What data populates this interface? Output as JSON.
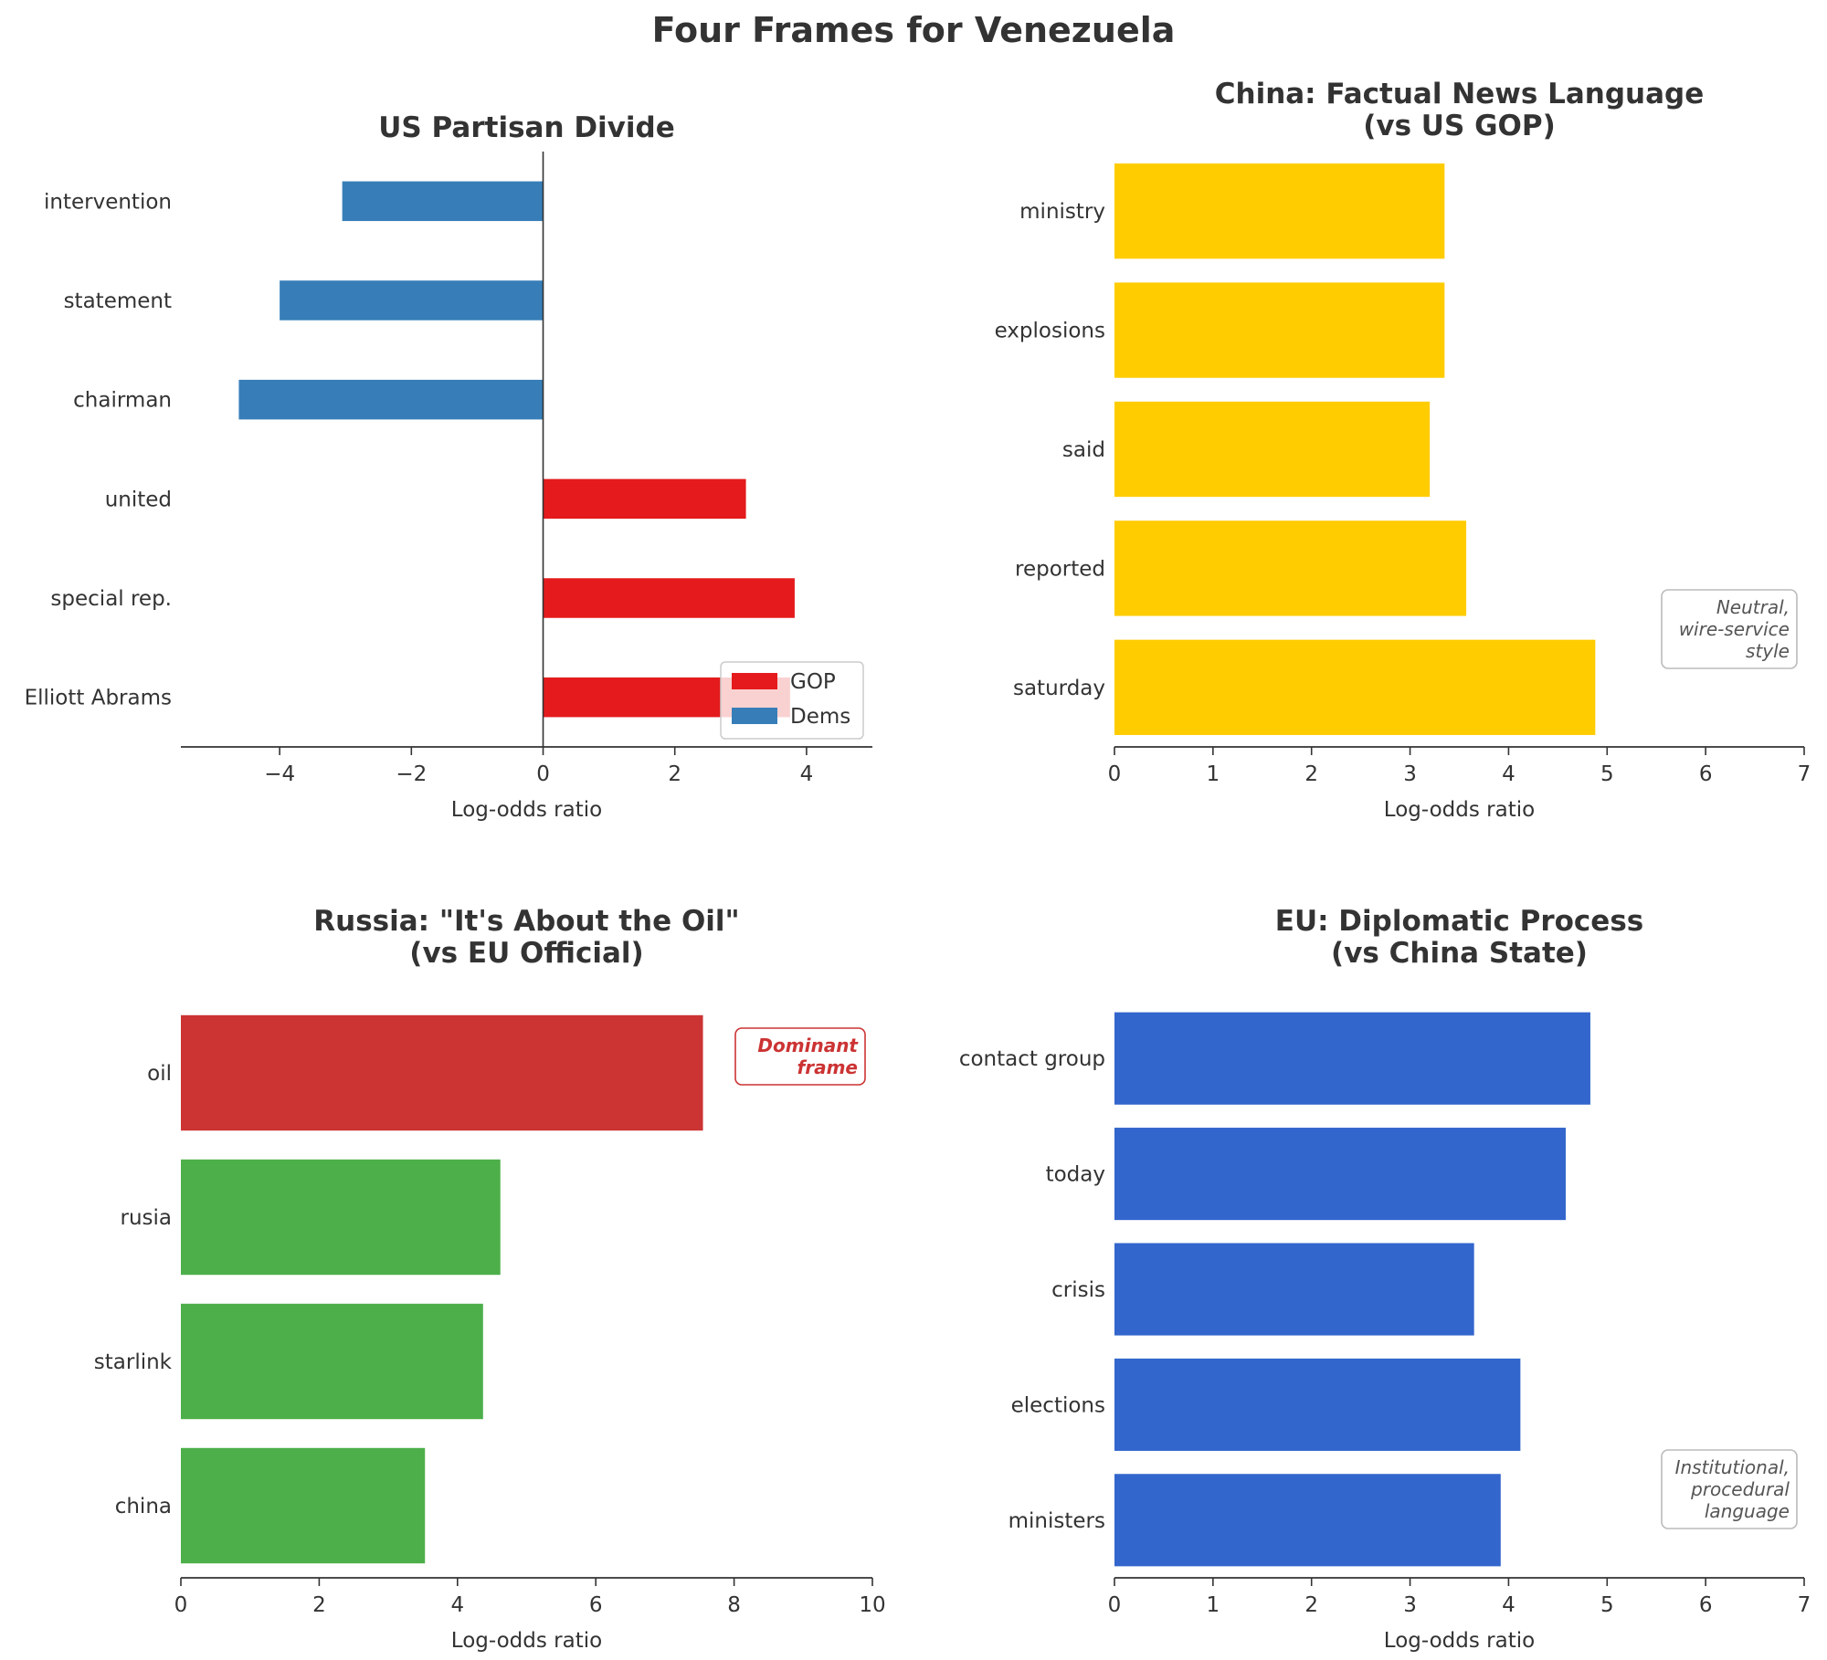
{
  "figure": {
    "title": "Four Frames for Venezuela"
  },
  "chart_data": [
    {
      "type": "bar",
      "orientation": "horizontal",
      "title": "US Partisan Divide",
      "xlabel": "Log-odds ratio",
      "ylabel": "",
      "xlim": [
        -5.5,
        5
      ],
      "xticks": [
        -4,
        -2,
        0,
        2,
        4
      ],
      "xtick_labels": [
        "−4",
        "−2",
        "0",
        "2",
        "4"
      ],
      "categories": [
        "intervention",
        "statement",
        "chairman",
        "united",
        "special rep.",
        "Elliott Abrams"
      ],
      "series": [
        {
          "name": "GOP",
          "color": "#e41a1c",
          "values": [
            null,
            null,
            null,
            3.08,
            3.82,
            3.75
          ]
        },
        {
          "name": "Dems",
          "color": "#377eb8",
          "values": [
            -3.05,
            -4.0,
            -4.62,
            null,
            null,
            null
          ]
        }
      ],
      "legend": {
        "position": "lower-right",
        "entries": [
          "GOP",
          "Dems"
        ]
      },
      "zero_line": true
    },
    {
      "type": "bar",
      "orientation": "horizontal",
      "title_lines": [
        "China: Factual News Language",
        "(vs US GOP)"
      ],
      "xlabel": "Log-odds ratio",
      "xlim": [
        0,
        7
      ],
      "xticks": [
        0,
        1,
        2,
        3,
        4,
        5,
        6,
        7
      ],
      "xtick_labels": [
        "0",
        "1",
        "2",
        "3",
        "4",
        "5",
        "6",
        "7"
      ],
      "categories": [
        "ministry",
        "explosions",
        "said",
        "reported",
        "saturday"
      ],
      "values": [
        3.35,
        3.35,
        3.2,
        3.57,
        4.88
      ],
      "colors": [
        "#ffcc00",
        "#ffcc00",
        "#ffcc00",
        "#ffcc00",
        "#ffcc00"
      ],
      "annotation": {
        "lines": [
          "Neutral,",
          "wire-service",
          "style"
        ],
        "color": "#555555",
        "border": "#bbbbbb",
        "position": "right-lower"
      }
    },
    {
      "type": "bar",
      "orientation": "horizontal",
      "title_lines": [
        "Russia: \"It's About the Oil\"",
        "(vs EU Official)"
      ],
      "xlabel": "Log-odds ratio",
      "xlim": [
        0,
        10
      ],
      "xticks": [
        0,
        2,
        4,
        6,
        8,
        10
      ],
      "xtick_labels": [
        "0",
        "2",
        "4",
        "6",
        "8",
        "10"
      ],
      "categories": [
        "oil",
        "rusia",
        "starlink",
        "china"
      ],
      "values": [
        7.55,
        4.62,
        4.37,
        3.53
      ],
      "colors": [
        "#cc3333",
        "#4daf4a",
        "#4daf4a",
        "#4daf4a"
      ],
      "annotation": {
        "lines": [
          "Dominant",
          "frame"
        ],
        "color": "#cc3333",
        "border": "#cc3333",
        "position": "right-upper",
        "bold": true
      }
    },
    {
      "type": "bar",
      "orientation": "horizontal",
      "title_lines": [
        "EU: Diplomatic Process",
        "(vs China State)"
      ],
      "xlabel": "Log-odds ratio",
      "xlim": [
        0,
        7
      ],
      "xticks": [
        0,
        1,
        2,
        3,
        4,
        5,
        6,
        7
      ],
      "xtick_labels": [
        "0",
        "1",
        "2",
        "3",
        "4",
        "5",
        "6",
        "7"
      ],
      "categories": [
        "contact group",
        "today",
        "crisis",
        "elections",
        "ministers"
      ],
      "values": [
        4.83,
        4.58,
        3.65,
        4.12,
        3.92
      ],
      "colors": [
        "#3366cc",
        "#3366cc",
        "#3366cc",
        "#3366cc",
        "#3366cc"
      ],
      "annotation": {
        "lines": [
          "Institutional,",
          "procedural",
          "language"
        ],
        "color": "#555555",
        "border": "#bbbbbb",
        "position": "right-lower"
      }
    }
  ]
}
